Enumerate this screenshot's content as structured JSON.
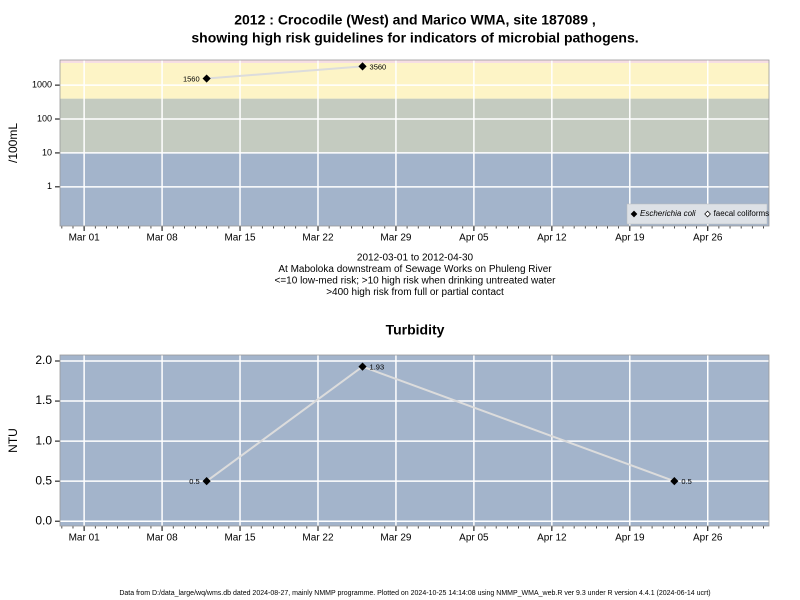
{
  "chart_data": [
    {
      "type": "line",
      "title": "2012 : Crocodile (West) and Marico WMA, site 187089 ,",
      "subtitle": "showing high risk guidelines for indicators of microbial pathogens.",
      "ylabel": "/100mL",
      "log": true,
      "x": [
        "2012-03-12",
        "2012-03-26"
      ],
      "series": [
        {
          "name": "Escherichia coli",
          "color": "#000000",
          "values": [
            1560,
            3560
          ]
        },
        {
          "name": "faecal coliforms",
          "color": "#ffffff",
          "values": [
            null,
            null
          ]
        }
      ],
      "line_color": "#dcdcdc",
      "xlim": [
        "2012-02-27T20:00",
        "2012-05-01T12:00"
      ],
      "xticks": [
        {
          "value": "2012-03-01",
          "label": "Mar 01"
        },
        {
          "value": "2012-03-08",
          "label": "Mar 08"
        },
        {
          "value": "2012-03-15",
          "label": "Mar 15"
        },
        {
          "value": "2012-03-22",
          "label": "Mar 22"
        },
        {
          "value": "2012-03-29",
          "label": "Mar 29"
        },
        {
          "value": "2012-04-05",
          "label": "Apr 05"
        },
        {
          "value": "2012-04-12",
          "label": "Apr 12"
        },
        {
          "value": "2012-04-19",
          "label": "Apr 19"
        },
        {
          "value": "2012-04-26",
          "label": "Apr 26"
        }
      ],
      "ylim": [
        0.07,
        5500
      ],
      "yticks": [
        1,
        10,
        100,
        1000
      ],
      "bands": [
        {
          "range": [
            0.07,
            10
          ],
          "color": "#a3b4cb"
        },
        {
          "range": [
            10,
            400
          ],
          "color": "#c4cbc0"
        },
        {
          "range": [
            400,
            4500
          ],
          "color": "#fdf4c6"
        },
        {
          "range": [
            4500,
            5500
          ],
          "color": "#f6dde3"
        }
      ],
      "grid": true,
      "legend": "bottom right",
      "notes": [
        "2012-03-01 to 2012-04-30",
        "At Maboloka downstream of Sewage Works on Phuleng River",
        "<=10 low-med risk; >10 high risk when drinking untreated water",
        ">400 high risk from full or partial contact"
      ]
    },
    {
      "type": "line",
      "title": "Turbidity",
      "ylabel": "NTU",
      "x": [
        "2012-03-12",
        "2012-03-26",
        "2012-04-23"
      ],
      "series": [
        {
          "color": "#000000",
          "values": [
            0.5,
            1.93,
            0.5
          ]
        }
      ],
      "line_color": "#dcdcdc",
      "background": "#a3b4cb",
      "xlim": [
        "2012-02-27T20:00",
        "2012-05-01T12:00"
      ],
      "xticks": [
        {
          "value": "2012-03-01",
          "label": "Mar 01"
        },
        {
          "value": "2012-03-08",
          "label": "Mar 08"
        },
        {
          "value": "2012-03-15",
          "label": "Mar 15"
        },
        {
          "value": "2012-03-22",
          "label": "Mar 22"
        },
        {
          "value": "2012-03-29",
          "label": "Mar 29"
        },
        {
          "value": "2012-04-05",
          "label": "Apr 05"
        },
        {
          "value": "2012-04-12",
          "label": "Apr 12"
        },
        {
          "value": "2012-04-19",
          "label": "Apr 19"
        },
        {
          "value": "2012-04-26",
          "label": "Apr 26"
        }
      ],
      "ylim": [
        -0.06,
        2.075
      ],
      "yticks": [
        {
          "value": 0,
          "label": "0.0"
        },
        0.5,
        {
          "value": 1,
          "label": "1.0"
        },
        1.5,
        {
          "value": 2,
          "label": "2.0"
        }
      ],
      "grid": true
    }
  ],
  "footer": "Data from D:/data_large/wq/wms.db dated 2024-08-27, mainly NMMP programme. Plotted on 2024-10-25 14:14:08 using NMMP_WMA_web.R ver 9.3 under R version 4.4.1 (2024-06-14 ucrt)"
}
